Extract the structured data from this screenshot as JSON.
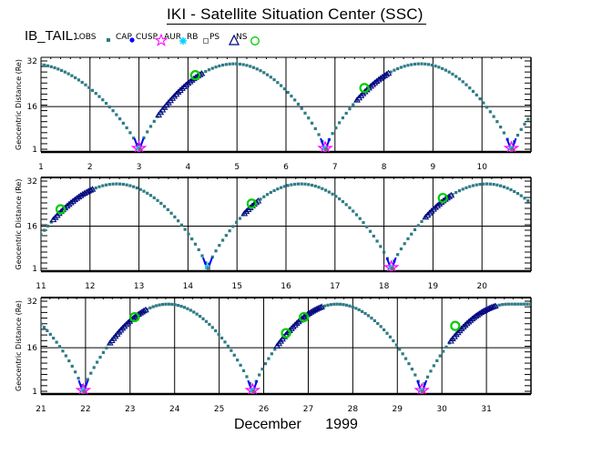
{
  "header": {
    "title": "IKI - Satellite Situation Center (SSC)",
    "satellite_label": "IB_TAIL:"
  },
  "legend": [
    {
      "label": "LOBS",
      "marker": "filled-square",
      "color": "#2e7b85"
    },
    {
      "label": "CAP",
      "marker": "filled-circle",
      "color": "#0000ff"
    },
    {
      "label": "CUSP",
      "marker": "star",
      "color": "#ff00ff"
    },
    {
      "label": "AUR",
      "marker": "asterisk",
      "color": "#00d0ff"
    },
    {
      "label": "RB",
      "marker": "open-square",
      "color": "#808080"
    },
    {
      "label": "PS",
      "marker": "triangle",
      "color": "#000080"
    },
    {
      "label": "NS",
      "marker": "open-circle",
      "color": "#00cc00"
    }
  ],
  "footer": {
    "month_label": "December",
    "year_label": "1999"
  },
  "chart_data": {
    "type": "scatter",
    "title": "IKI - Satellite Situation Center (SSC)",
    "ylabel": "Geocentric Distance (Re)",
    "xlabel": "December 1999",
    "ylim": [
      1,
      32
    ],
    "yticks": [
      1,
      16,
      32
    ],
    "grid": true,
    "legend_position": "top",
    "orbit": {
      "perigee_re": 1,
      "apogee_re": 31,
      "perigee_days": [
        3.0,
        6.8,
        10.6,
        14.4,
        18.15,
        21.95,
        25.75,
        29.55
      ],
      "apogee_days": [
        0.8,
        4.95,
        8.75,
        12.55,
        16.3,
        20.1,
        23.85,
        27.65,
        31.5
      ]
    },
    "panels": [
      {
        "x_range": [
          1,
          11
        ],
        "xticks": [
          1,
          2,
          3,
          4,
          5,
          6,
          7,
          8,
          9,
          10
        ],
        "ns_crossings": [
          {
            "day": 4.15,
            "r": 27
          },
          {
            "day": 7.6,
            "r": 22.5
          }
        ],
        "ps_segments": [
          [
            3.4,
            4.3
          ],
          [
            7.45,
            8.1
          ]
        ],
        "cusp_days": [
          3.0,
          6.8,
          10.6
        ]
      },
      {
        "x_range": [
          11,
          21
        ],
        "xticks": [
          11,
          12,
          13,
          14,
          15,
          16,
          17,
          18,
          19,
          20
        ],
        "ns_crossings": [
          {
            "day": 11.4,
            "r": 22
          },
          {
            "day": 15.3,
            "r": 24
          },
          {
            "day": 19.2,
            "r": 26
          }
        ],
        "ps_segments": [
          [
            11.25,
            12.05
          ],
          [
            15.15,
            15.45
          ],
          [
            18.85,
            19.4
          ]
        ],
        "cusp_days": [
          18.2
        ]
      },
      {
        "x_range": [
          21,
          32
        ],
        "xticks": [
          21,
          22,
          23,
          24,
          25,
          26,
          27,
          28,
          29,
          30,
          31
        ],
        "ns_crossings": [
          {
            "day": 23.1,
            "r": 26.5
          },
          {
            "day": 26.5,
            "r": 21
          },
          {
            "day": 26.9,
            "r": 26.5
          },
          {
            "day": 30.3,
            "r": 23.5
          }
        ],
        "ps_segments": [
          [
            22.55,
            23.35
          ],
          [
            26.3,
            27.3
          ],
          [
            30.2,
            31.2
          ]
        ],
        "cusp_days": [
          22.0,
          25.8,
          29.6
        ]
      }
    ]
  }
}
